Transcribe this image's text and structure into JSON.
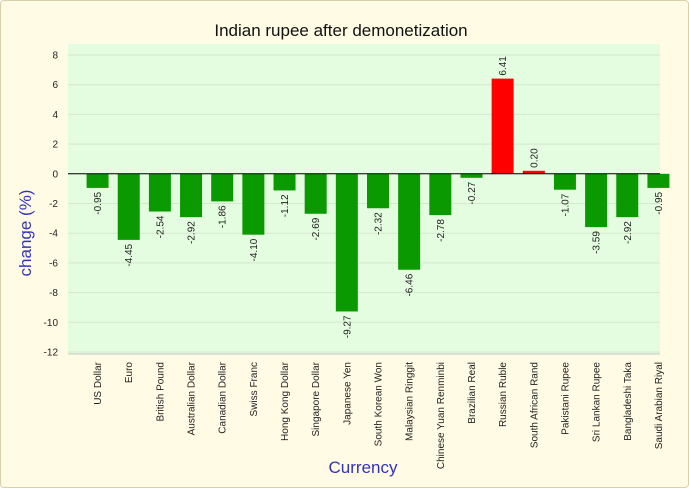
{
  "chart_data": {
    "type": "bar",
    "title": "Indian rupee after demonetization",
    "xlabel": "Currency",
    "ylabel": "change (%)",
    "ylim": [
      -12,
      8
    ],
    "yticks": [
      8,
      6,
      4,
      2,
      0,
      -2,
      -4,
      -6,
      -8,
      -10,
      -12
    ],
    "grid": true,
    "legend": "none",
    "categories": [
      "US Dollar",
      "Euro",
      "British Pound",
      "Australian Dollar",
      "Canadian Dollar",
      "Swiss Franc",
      "Hong Kong Dollar",
      "Singapore Dollar",
      "Japanese Yen",
      "South Korean Won",
      "Malaysian Ringgit",
      "Chinese Yuan Renminbi",
      "Brazilian Real",
      "Russian Ruble",
      "South African Rand",
      "Pakistani Rupee",
      "Sri Lankan Rupee",
      "Bangladeshi Taka",
      "Saudi Arabian Riyal"
    ],
    "values": [
      -0.95,
      -4.45,
      -2.54,
      -2.92,
      -1.86,
      -4.1,
      -1.12,
      -2.69,
      -9.27,
      -2.32,
      -6.46,
      -2.78,
      -0.27,
      6.41,
      0.2,
      -1.07,
      -3.59,
      -2.92,
      -0.95
    ],
    "value_labels": [
      "-0.95",
      "-4.45",
      "-2.54",
      "-2.92",
      "-1.86",
      "-4.10",
      "-1.12",
      "-2.69",
      "-9.27",
      "-2.32",
      "-6.46",
      "-2.78",
      "-0.27",
      "6.41",
      "0.20",
      "-1.07",
      "-3.59",
      "-2.92",
      "-0.95"
    ],
    "colors": {
      "negative": "#0a9a00",
      "positive": "#ff0000",
      "plot_background": "#e4fce0",
      "page_background": "#fffbe5",
      "grid": "#d4e8cc",
      "axis_title": "#3333bb"
    }
  }
}
